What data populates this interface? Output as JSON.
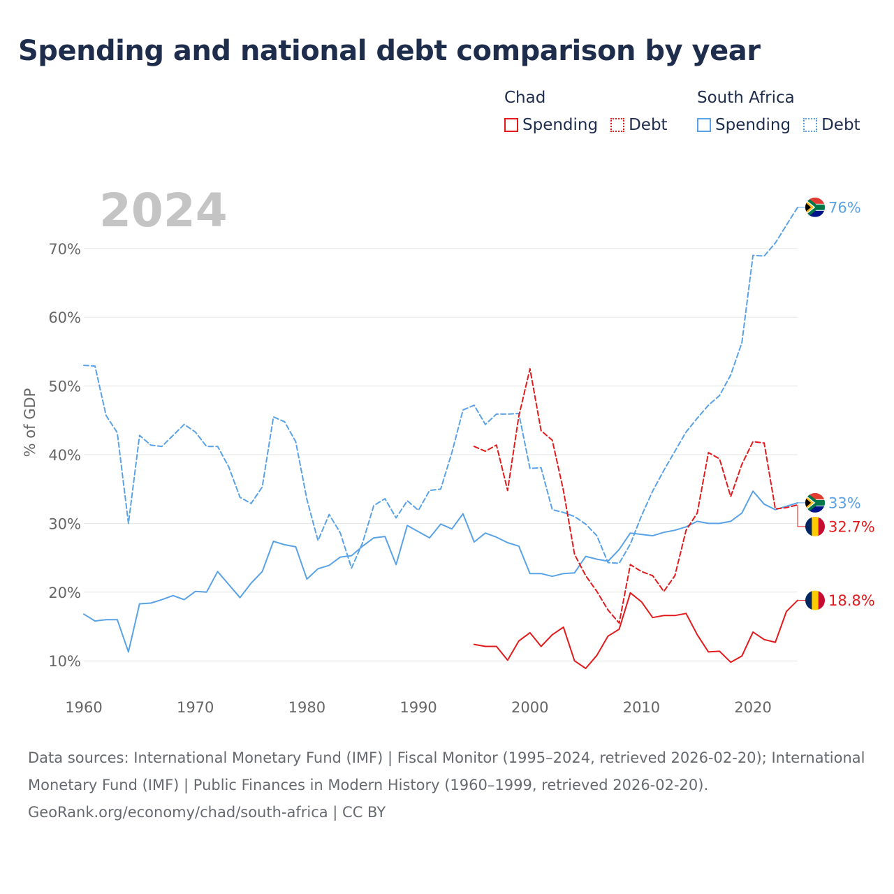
{
  "title": "Spending and national debt comparison by year",
  "legend": {
    "groups": [
      {
        "country": "Chad",
        "spending_label": "Spending",
        "debt_label": "Debt",
        "color": "#e31a1c"
      },
      {
        "country": "South Africa",
        "spending_label": "Spending",
        "debt_label": "Debt",
        "color": "#5aa2e6"
      }
    ]
  },
  "year_label": "2024",
  "colors": {
    "chad": "#e31a1c",
    "south_africa": "#5aa2e6",
    "grid": "#e6e6e6",
    "axis_text": "#666666",
    "year_text": "#c4c4c4"
  },
  "chart_data": {
    "type": "line",
    "title": "Spending and national debt comparison by year",
    "xlabel": "",
    "ylabel": "% of GDP",
    "xlim": [
      1960,
      2024
    ],
    "ylim": [
      2.5,
      77.5
    ],
    "x_ticks": [
      1960,
      1970,
      1980,
      1990,
      2000,
      2010,
      2020
    ],
    "y_ticks": [
      {
        "value": 10,
        "label": "10%"
      },
      {
        "value": 20,
        "label": "20%"
      },
      {
        "value": 30,
        "label": "30%"
      },
      {
        "value": 40,
        "label": "40%"
      },
      {
        "value": 50,
        "label": "50%"
      },
      {
        "value": 60,
        "label": "60%"
      },
      {
        "value": 70,
        "label": "70%"
      }
    ],
    "series": [
      {
        "name": "South Africa Debt",
        "country": "South Africa",
        "kind": "Debt",
        "style": "dashed",
        "color": "#5aa2e6",
        "end_label": "76%",
        "x": [
          1960,
          1961,
          1962,
          1963,
          1964,
          1965,
          1966,
          1967,
          1968,
          1969,
          1970,
          1971,
          1972,
          1973,
          1974,
          1975,
          1976,
          1977,
          1978,
          1979,
          1980,
          1981,
          1982,
          1983,
          1984,
          1985,
          1986,
          1987,
          1988,
          1989,
          1990,
          1991,
          1992,
          1993,
          1994,
          1995,
          1996,
          1997,
          1998,
          1999,
          2000,
          2001,
          2002,
          2003,
          2004,
          2005,
          2006,
          2007,
          2008,
          2009,
          2010,
          2011,
          2012,
          2013,
          2014,
          2015,
          2016,
          2017,
          2018,
          2019,
          2020,
          2021,
          2022,
          2023,
          2024
        ],
        "values": [
          53,
          52.9,
          45.7,
          43.2,
          30,
          42.8,
          41.4,
          41.2,
          42.8,
          44.4,
          43.3,
          41.2,
          41.2,
          38.2,
          33.8,
          32.9,
          35.3,
          45.5,
          44.8,
          41.9,
          33.5,
          27.5,
          31.3,
          28.6,
          23.5,
          27.2,
          32.6,
          33.6,
          30.8,
          33.3,
          31.9,
          34.8,
          35,
          40.3,
          46.5,
          47.2,
          44.4,
          45.9,
          45.9,
          46,
          38,
          38.1,
          32,
          31.6,
          31,
          29.9,
          28.2,
          24.3,
          24.2,
          27,
          31.1,
          34.7,
          37.7,
          40.5,
          43.3,
          45.3,
          47.2,
          48.6,
          51.6,
          56.3,
          69,
          68.9,
          70.8,
          73.4,
          76
        ]
      },
      {
        "name": "South Africa Spending",
        "country": "South Africa",
        "kind": "Spending",
        "style": "solid",
        "color": "#5aa2e6",
        "end_label": "33%",
        "x": [
          1960,
          1961,
          1962,
          1963,
          1964,
          1965,
          1966,
          1967,
          1968,
          1969,
          1970,
          1971,
          1972,
          1973,
          1974,
          1975,
          1976,
          1977,
          1978,
          1979,
          1980,
          1981,
          1982,
          1983,
          1984,
          1985,
          1986,
          1987,
          1988,
          1989,
          1990,
          1991,
          1992,
          1993,
          1994,
          1995,
          1996,
          1997,
          1998,
          1999,
          2000,
          2001,
          2002,
          2003,
          2004,
          2005,
          2006,
          2007,
          2008,
          2009,
          2010,
          2011,
          2012,
          2013,
          2014,
          2015,
          2016,
          2017,
          2018,
          2019,
          2020,
          2021,
          2022,
          2023,
          2024
        ],
        "values": [
          16.8,
          15.8,
          16,
          16,
          11.3,
          18.3,
          18.4,
          18.9,
          19.5,
          18.9,
          20.1,
          20,
          23,
          21.1,
          19.2,
          21.3,
          23,
          27.4,
          26.9,
          26.6,
          21.9,
          23.4,
          23.9,
          25.1,
          25.3,
          26.7,
          27.9,
          28.1,
          24,
          29.7,
          28.8,
          27.9,
          29.9,
          29.2,
          31.4,
          27.3,
          28.6,
          28,
          27.2,
          26.7,
          22.7,
          22.7,
          22.3,
          22.7,
          22.8,
          25.2,
          24.8,
          24.5,
          26.2,
          28.6,
          28.4,
          28.2,
          28.7,
          29,
          29.5,
          30.3,
          30,
          30,
          30.3,
          31.5,
          34.7,
          32.8,
          32,
          32.5,
          33
        ]
      },
      {
        "name": "Chad Debt",
        "country": "Chad",
        "kind": "Debt",
        "style": "dashed",
        "color": "#e31a1c",
        "end_label": "32.7%",
        "x": [
          1995,
          1996,
          1997,
          1998,
          1999,
          2000,
          2001,
          2002,
          2003,
          2004,
          2005,
          2006,
          2007,
          2008,
          2009,
          2010,
          2011,
          2012,
          2013,
          2014,
          2015,
          2016,
          2017,
          2018,
          2019,
          2020,
          2021,
          2022,
          2023,
          2024
        ],
        "values": [
          41.2,
          40.5,
          41.4,
          34.8,
          45.6,
          52.5,
          43.5,
          42.1,
          34.8,
          25.5,
          22.4,
          20.1,
          17.4,
          15.5,
          24,
          23,
          22.4,
          20.1,
          22.4,
          29,
          31.5,
          40.3,
          39.4,
          33.9,
          38.6,
          41.9,
          41.7,
          32.1,
          32.3,
          32.7
        ]
      },
      {
        "name": "Chad Spending",
        "country": "Chad",
        "kind": "Spending",
        "style": "solid",
        "color": "#e31a1c",
        "end_label": "18.8%",
        "x": [
          1995,
          1996,
          1997,
          1998,
          1999,
          2000,
          2001,
          2002,
          2003,
          2004,
          2005,
          2006,
          2007,
          2008,
          2009,
          2010,
          2011,
          2012,
          2013,
          2014,
          2015,
          2016,
          2017,
          2018,
          2019,
          2020,
          2021,
          2022,
          2023,
          2024
        ],
        "values": [
          12.4,
          12.1,
          12.1,
          10.1,
          12.9,
          14.1,
          12.1,
          13.8,
          14.9,
          10,
          8.9,
          10.8,
          13.6,
          14.6,
          19.9,
          18.6,
          16.3,
          16.6,
          16.6,
          16.9,
          13.8,
          11.3,
          11.4,
          9.8,
          10.7,
          14.2,
          13.1,
          12.7,
          17.2,
          18.8
        ]
      }
    ]
  },
  "sources_text": "Data sources: International Monetary Fund (IMF) | Fiscal Monitor (1995–2024, retrieved 2026-02-20); International Monetary Fund (IMF) | Public Finances in Modern History (1960–1999, retrieved 2026-02-20).",
  "credit_text": "GeoRank.org/economy/chad/south-africa | CC BY"
}
